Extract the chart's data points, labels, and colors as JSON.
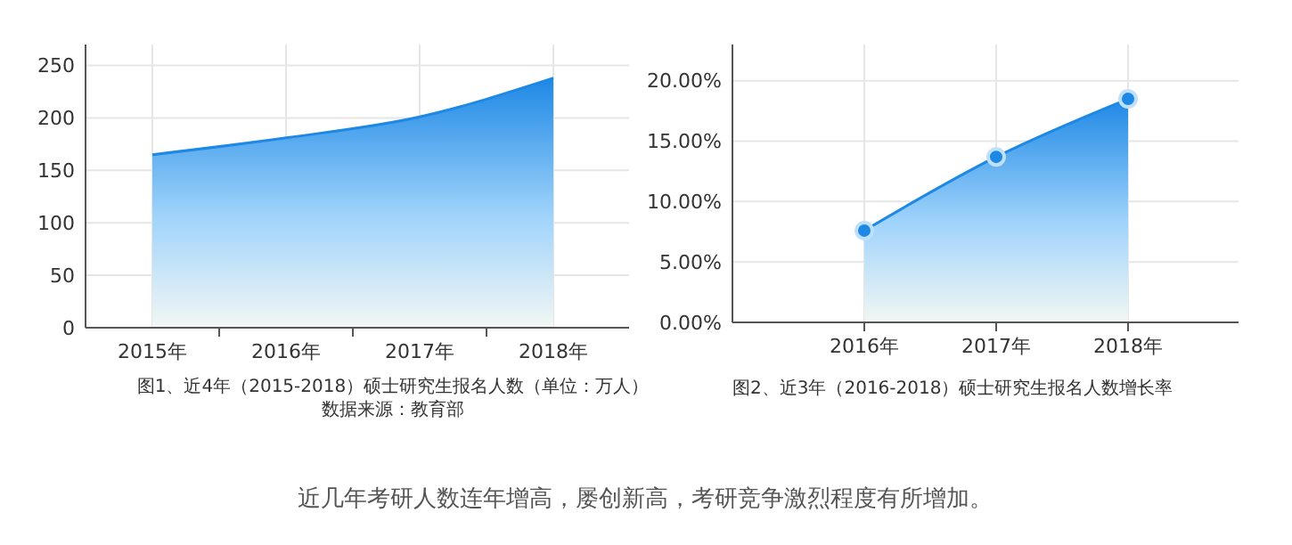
{
  "chart_data": [
    {
      "type": "area",
      "categories": [
        "2015年",
        "2016年",
        "2017年",
        "2018年"
      ],
      "values": [
        165,
        181,
        201,
        238
      ],
      "color": "#1e88e5",
      "ylim": [
        0,
        270
      ],
      "yticks": [
        0,
        50,
        100,
        150,
        200,
        250
      ],
      "grid": true,
      "annotations": [
        "图1、近4年（2015-2018）硕士研究生报名人数（单位：万人）",
        "数据来源：教育部"
      ]
    },
    {
      "type": "area",
      "categories": [
        null,
        "2016年",
        "2017年",
        "2018年"
      ],
      "values": [
        null,
        7.6,
        13.7,
        18.5
      ],
      "color": "#1e88e5",
      "marker": "circle",
      "ylim": [
        0,
        23
      ],
      "yticks": [
        {
          "value": 0,
          "label": "0.00%"
        },
        {
          "value": 5,
          "label": "5.00%"
        },
        {
          "value": 10,
          "label": "10.00%"
        },
        {
          "value": 15,
          "label": "15.00%"
        },
        {
          "value": 20,
          "label": "20.00%"
        }
      ],
      "grid": true,
      "annotations": [
        "图2、近3年（2016-2018）硕士研究生报名人数增长率",
        "近几年考研人数连年增高，屡创新高，考研竞争激烈程度有所增加。"
      ]
    }
  ]
}
